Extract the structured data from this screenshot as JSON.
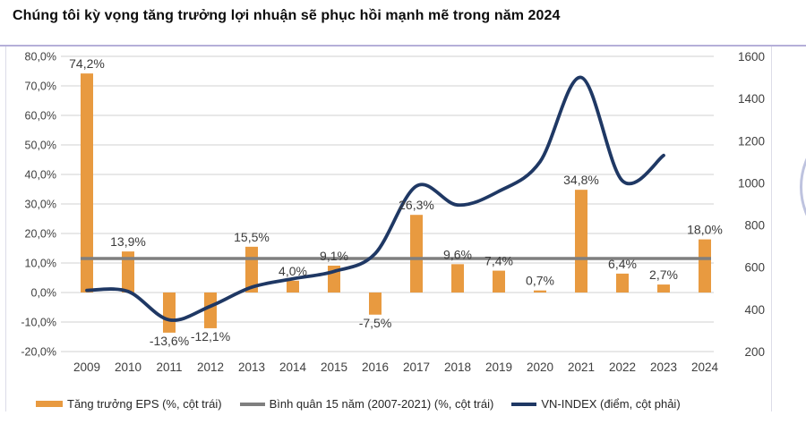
{
  "title": "Chúng tôi kỳ vọng tăng trưởng lợi nhuận sẽ phục hồi mạnh mẽ trong năm 2024",
  "colors": {
    "bar": "#E89A40",
    "average_line": "#7F7F7F",
    "vn_index_line": "#1F3864",
    "grid": "#D9D9D9",
    "top_rule": "#B5AFD9",
    "frame": "#DCDCE8",
    "watermark": "#7E88C0"
  },
  "chart_data": {
    "type": "bar",
    "title": "Chúng tôi kỳ vọng tăng trưởng lợi nhuận sẽ phục hồi mạnh mẽ trong năm 2024",
    "categories": [
      "2009",
      "2010",
      "2011",
      "2012",
      "2013",
      "2014",
      "2015",
      "2016",
      "2017",
      "2018",
      "2019",
      "2020",
      "2021",
      "2022",
      "2023",
      "2024"
    ],
    "grid": true,
    "legend_position": "bottom",
    "left_axis": {
      "unit": "%",
      "min": -20,
      "max": 80,
      "step": 10,
      "tick_values": [
        80,
        70,
        60,
        50,
        40,
        30,
        20,
        10,
        0,
        -10,
        -20
      ],
      "ticks": [
        "80,0%",
        "70,0%",
        "60,0%",
        "50,0%",
        "40,0%",
        "30,0%",
        "20,0%",
        "10,0%",
        "0,0%",
        "-10,0%",
        "-20,0%"
      ]
    },
    "right_axis": {
      "unit": "điểm",
      "min": 200,
      "max": 1600,
      "step": 200,
      "tick_values": [
        1600,
        1400,
        1200,
        1000,
        800,
        600,
        400,
        200
      ],
      "ticks": [
        "1600",
        "1400",
        "1200",
        "1000",
        "800",
        "600",
        "400",
        "200"
      ]
    },
    "series": [
      {
        "name": "Tăng trưởng EPS (%, cột trái)",
        "type": "bar",
        "axis": "left",
        "color": "#E89A40",
        "values": [
          74.2,
          13.9,
          -13.6,
          -12.1,
          15.5,
          4.0,
          9.1,
          -7.5,
          26.3,
          9.6,
          7.4,
          0.7,
          34.8,
          6.4,
          2.7,
          18.0
        ],
        "labels": [
          "74,2%",
          "13,9%",
          "-13,6%",
          "-12,1%",
          "15,5%",
          "4,0%",
          "9,1%",
          "-7,5%",
          "26,3%",
          "9,6%",
          "7,4%",
          "0,7%",
          "34,8%",
          "6,4%",
          "2,7%",
          "18,0%"
        ]
      },
      {
        "name": "Bình quân 15 năm (2007-2021) (%, cột trái)",
        "type": "line-constant",
        "axis": "left",
        "color": "#7F7F7F",
        "value": 11.5
      },
      {
        "name": "VN-INDEX (điểm, cột phải)",
        "type": "spline",
        "axis": "right",
        "color": "#1F3864",
        "x": [
          "2009",
          "2010",
          "2011",
          "2012",
          "2013",
          "2014",
          "2015",
          "2016",
          "2017",
          "2018",
          "2019",
          "2020",
          "2021",
          "2022",
          "2023"
        ],
        "values": [
          490,
          485,
          350,
          415,
          505,
          545,
          580,
          665,
          985,
          895,
          960,
          1100,
          1500,
          1010,
          1130
        ]
      }
    ]
  }
}
